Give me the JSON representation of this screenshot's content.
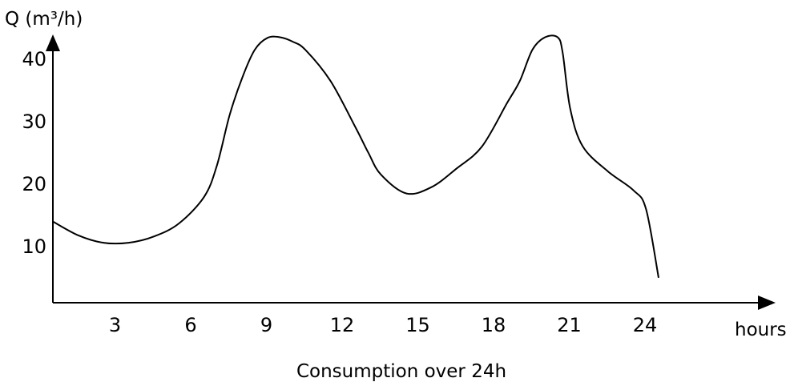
{
  "chart_data": {
    "type": "line",
    "title": "Consumption over 24h",
    "xlabel": "hours",
    "ylabel": "Q (m³/h)",
    "xticks": [
      "3",
      "6",
      "9",
      "12",
      "15",
      "18",
      "21",
      "24"
    ],
    "yticks": [
      "10",
      "20",
      "30",
      "40"
    ],
    "grid": false,
    "series": [
      {
        "x": [
          0,
          1,
          2,
          3,
          4,
          5,
          6,
          6.5,
          7,
          7.5,
          8,
          8.5,
          9,
          9.5,
          10,
          11,
          12,
          12.5,
          13,
          14,
          15,
          16,
          17,
          18,
          18.5,
          19,
          19.5,
          20,
          20.2,
          20.5,
          21,
          22,
          23,
          23.5,
          24
        ],
        "y": [
          13,
          10.8,
          9.6,
          9.6,
          10.6,
          12.7,
          17,
          22,
          30,
          36,
          40.5,
          42.4,
          42.5,
          41.8,
          40.5,
          35.5,
          28,
          24,
          20.5,
          17.5,
          18.5,
          21.5,
          25,
          32,
          35.5,
          40.5,
          42.5,
          42.5,
          40,
          31,
          25,
          21,
          18,
          15,
          4
        ]
      }
    ],
    "line_color": "#000000"
  }
}
